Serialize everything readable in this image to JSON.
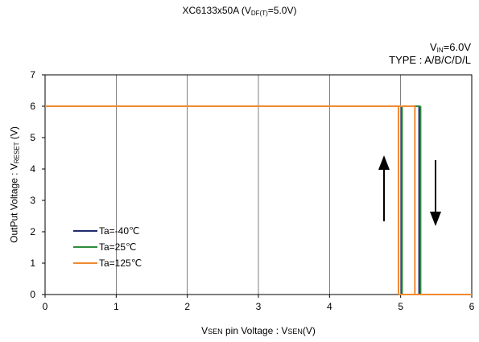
{
  "chart_data": {
    "type": "line",
    "title": {
      "main": "XC6133x50A (V",
      "sub": "DF(T)",
      "tail": "=5.0V)"
    },
    "conditions": {
      "vin_main": "V",
      "vin_sub": "IN",
      "vin_tail": "=6.0V",
      "type_text": "TYPE : A/B/C/D/L"
    },
    "xlabel": {
      "v1": "V",
      "sc1": "SEN",
      "mid": " pin Voltage : V",
      "sc2": "SEN",
      "tail": "(V)"
    },
    "ylabel": {
      "main": "OutPut Voltage : V",
      "sub": "RESET",
      "tail": " (V)"
    },
    "xlim": [
      0,
      6
    ],
    "ylim": [
      0,
      7
    ],
    "x_ticks": [
      "0",
      "1",
      "2",
      "3",
      "4",
      "5",
      "6"
    ],
    "y_ticks": [
      "0",
      "1",
      "2",
      "3",
      "4",
      "5",
      "6",
      "7"
    ],
    "grid": "vertical",
    "legend_position": "lower-left",
    "series": [
      {
        "name": "Ta=-40℃",
        "color": "#1f2a6e",
        "release": 5.26,
        "detect": 5.01,
        "high": 6.0
      },
      {
        "name": "Ta=25℃",
        "color": "#2e8b3e",
        "release": 5.28,
        "detect": 5.02,
        "high": 6.0
      },
      {
        "name": "Ta=125℃",
        "color": "#f08a30",
        "release": 5.2,
        "detect": 4.97,
        "high": 6.0
      }
    ]
  }
}
